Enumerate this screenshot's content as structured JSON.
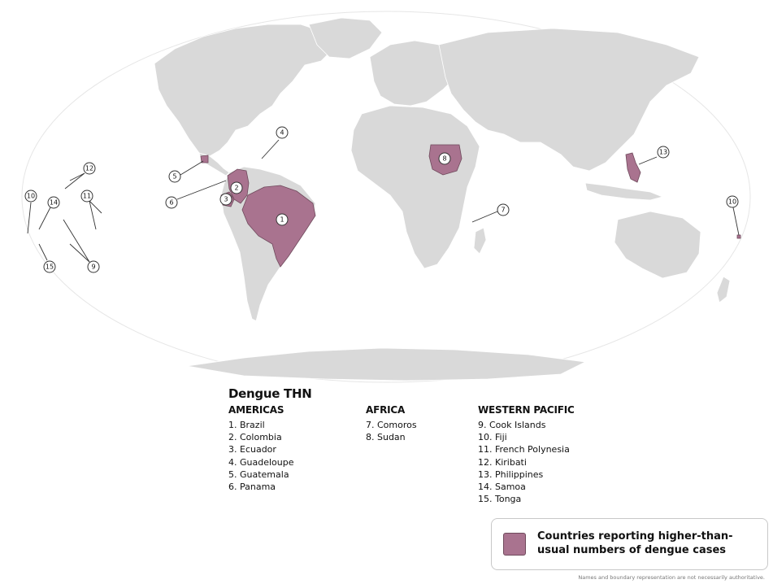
{
  "legend": {
    "title": "Dengue THN",
    "regions": [
      {
        "name": "AMERICAS",
        "items": [
          "1. Brazil",
          "2. Colombia",
          "3. Ecuador",
          "4. Guadeloupe",
          "5. Guatemala",
          "6. Panama"
        ]
      },
      {
        "name": "AFRICA",
        "items": [
          "7. Comoros",
          "8. Sudan"
        ]
      },
      {
        "name": "WESTERN PACIFIC",
        "items": [
          "9. Cook Islands",
          "10. Fiji",
          "11. French Polynesia",
          "12. Kiribati",
          "13. Philippines",
          "14. Samoa",
          "15. Tonga"
        ]
      }
    ]
  },
  "key": {
    "label": "Countries reporting higher-than-usual numbers of dengue cases",
    "color": "#a9738f"
  },
  "disclaimer": "Names and boundary representation are not necessarily authoritative.",
  "map": {
    "land_color": "#d9d9d9",
    "highlight_color": "#a9738f",
    "callouts": [
      "1",
      "2",
      "3",
      "4",
      "5",
      "6",
      "7",
      "8",
      "9",
      "10",
      "10",
      "11",
      "12",
      "13",
      "14",
      "15"
    ]
  }
}
